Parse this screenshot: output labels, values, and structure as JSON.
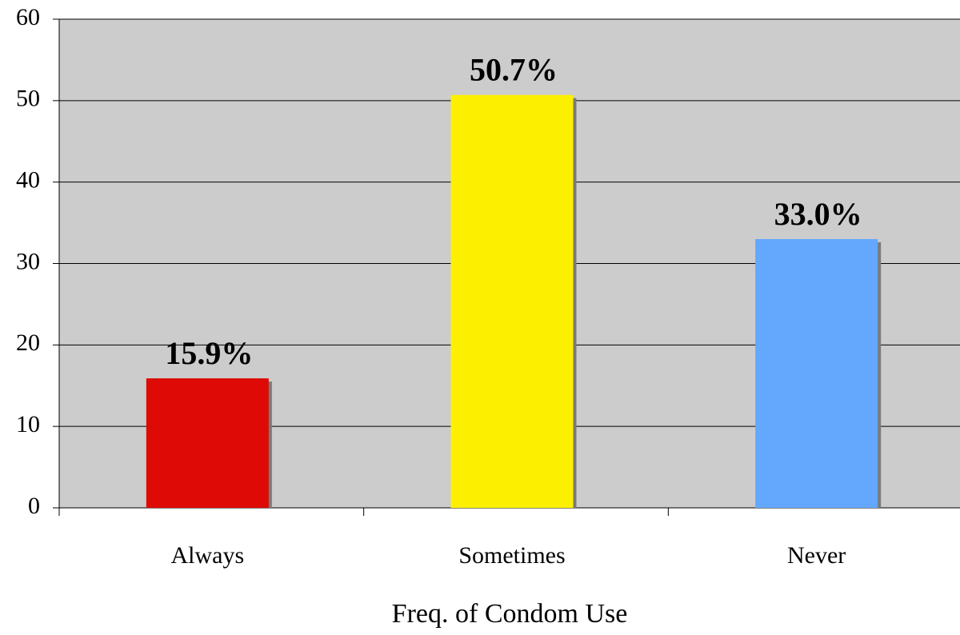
{
  "chart_data": {
    "type": "bar",
    "x_label": "Freq. of Condom Use",
    "categories": [
      "Always",
      "Sometimes",
      "Never"
    ],
    "values": [
      15.9,
      50.7,
      33.0
    ],
    "value_labels": [
      "15.9%",
      "50.7%",
      "33.0%"
    ],
    "colors": [
      "#dd0a05",
      "#fcf000",
      "#63a8fd"
    ],
    "ylim": [
      0,
      60
    ],
    "yticks": [
      0,
      10,
      20,
      30,
      40,
      50,
      60
    ],
    "grid": true
  }
}
